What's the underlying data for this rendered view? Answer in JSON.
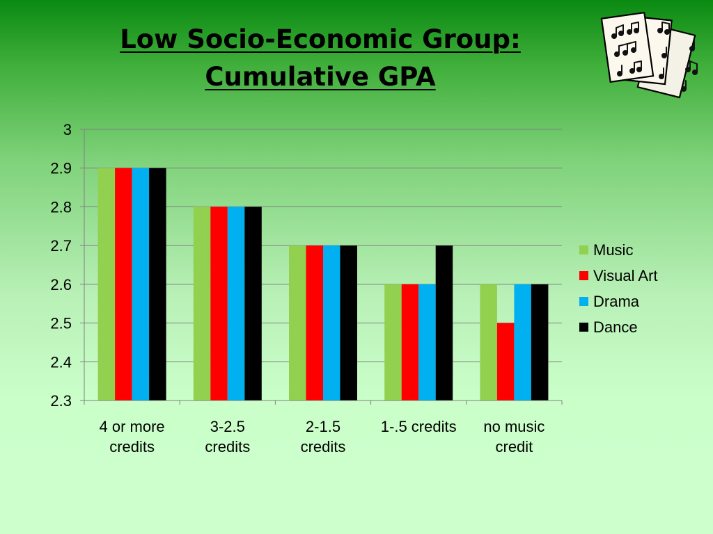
{
  "title": {
    "line1": "Low Socio-Economic Group:",
    "line2": "Cumulative GPA"
  },
  "decoration": {
    "icon": "sheet-music-icon"
  },
  "chart_data": {
    "type": "bar",
    "title": "",
    "xlabel": "",
    "ylabel": "",
    "ylim": [
      2.3,
      3
    ],
    "yticks": [
      "2.3",
      "2.4",
      "2.5",
      "2.6",
      "2.7",
      "2.8",
      "2.9",
      "3"
    ],
    "grid": true,
    "legend_position": "right",
    "categories": [
      [
        "4 or more",
        "credits"
      ],
      [
        "3-2.5",
        "credits"
      ],
      [
        "2-1.5",
        "credits"
      ],
      [
        "1-.5 credits"
      ],
      [
        "no music",
        "credit"
      ]
    ],
    "series": [
      {
        "name": "Music",
        "color": "#92d050",
        "values": [
          2.9,
          2.8,
          2.7,
          2.6,
          2.6
        ]
      },
      {
        "name": "Visual Art",
        "color": "#ff0000",
        "values": [
          2.9,
          2.8,
          2.7,
          2.6,
          2.5
        ]
      },
      {
        "name": "Drama",
        "color": "#00b0f0",
        "values": [
          2.9,
          2.8,
          2.7,
          2.6,
          2.6
        ]
      },
      {
        "name": "Dance",
        "color": "#000000",
        "values": [
          2.9,
          2.8,
          2.7,
          2.7,
          2.6
        ]
      }
    ]
  }
}
